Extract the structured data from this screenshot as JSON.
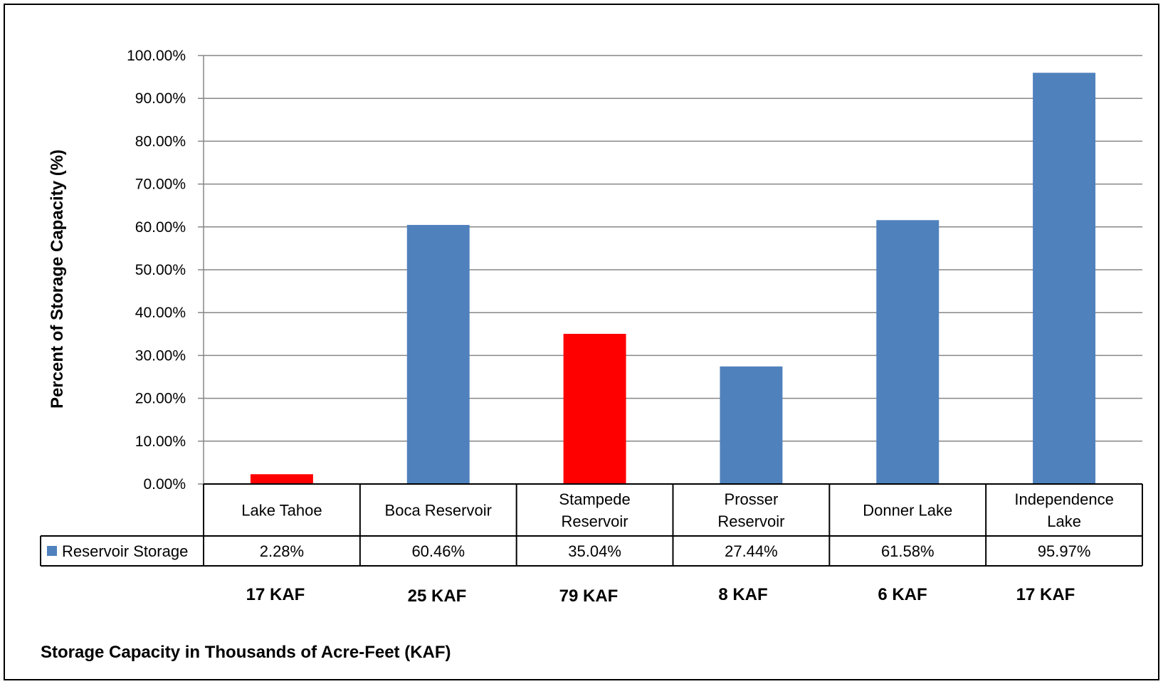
{
  "chart_data": {
    "type": "bar",
    "title": "",
    "xlabel": "",
    "ylabel": "Percent of Storage Capacity (%)",
    "ylim": [
      0,
      100
    ],
    "yticks": [
      "0.00%",
      "10.00%",
      "20.00%",
      "30.00%",
      "40.00%",
      "50.00%",
      "60.00%",
      "70.00%",
      "80.00%",
      "90.00%",
      "100.00%"
    ],
    "grid": true,
    "categories": [
      [
        "Lake Tahoe"
      ],
      [
        "Boca Reservoir"
      ],
      [
        "Stampede",
        "Reservoir"
      ],
      [
        "Prosser",
        "Reservoir"
      ],
      [
        "Donner Lake"
      ],
      [
        "Independence",
        "Lake"
      ]
    ],
    "series": [
      {
        "name": "Reservoir Storage",
        "values": [
          2.28,
          60.46,
          35.04,
          27.44,
          61.58,
          95.97
        ],
        "value_labels": [
          "2.28%",
          "60.46%",
          "35.04%",
          "27.44%",
          "61.58%",
          "95.97%"
        ],
        "color": "#4f81bd",
        "bar_colors": [
          "#ff0000",
          "#4f81bd",
          "#ff0000",
          "#4f81bd",
          "#4f81bd",
          "#4f81bd"
        ]
      }
    ],
    "legend_placement": "data-table",
    "capacity_labels": [
      "17 KAF",
      "25 KAF",
      "79 KAF",
      "8 KAF",
      "6 KAF",
      "17 KAF"
    ],
    "footer_label": "Storage Capacity in Thousands of Acre-Feet (KAF)"
  }
}
